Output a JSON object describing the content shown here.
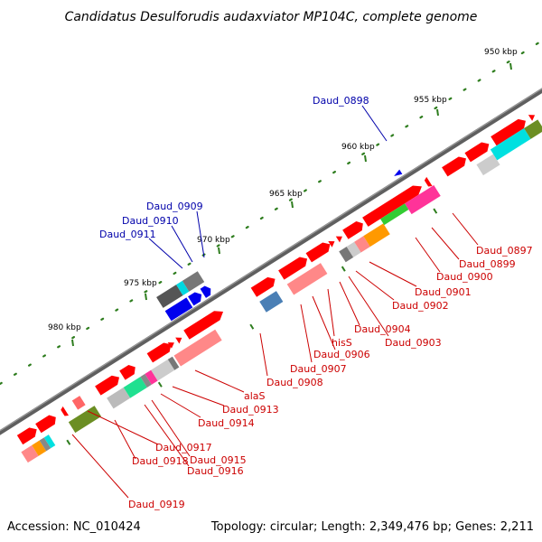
{
  "title": "Candidatus Desulforudis audaxviator MP104C, complete genome",
  "footer": {
    "accession": "Accession: NC_010424",
    "summary": "Topology: circular; Length: 2,349,476 bp; Genes: 2,211"
  },
  "colors": {
    "backbone": "#6e6e6e",
    "kbp_tick": "#2e7d1e",
    "label_red": "#cc0000",
    "label_blue": "#0000aa",
    "gene_red": "#ff0000",
    "gene_blue": "#0000ee"
  },
  "scale_labels": [
    "950 kbp",
    "955 kbp",
    "960 kbp",
    "965 kbp",
    "970 kbp",
    "975 kbp",
    "980 kbp"
  ],
  "red_labels": [
    "Daud_0897",
    "Daud_0899",
    "Daud_0900",
    "Daud_0901",
    "Daud_0902",
    "Daud_0903",
    "Daud_0904",
    "hisS",
    "Daud_0906",
    "Daud_0907",
    "Daud_0908",
    "alaS",
    "Daud_0913",
    "Daud_0914",
    "Daud_0917",
    "Daud_0915",
    "Daud_0916",
    "Daud_0918",
    "Daud_0919"
  ],
  "blue_labels": [
    "Daud_0898",
    "Daud_0909",
    "Daud_0910",
    "Daud_0911"
  ]
}
